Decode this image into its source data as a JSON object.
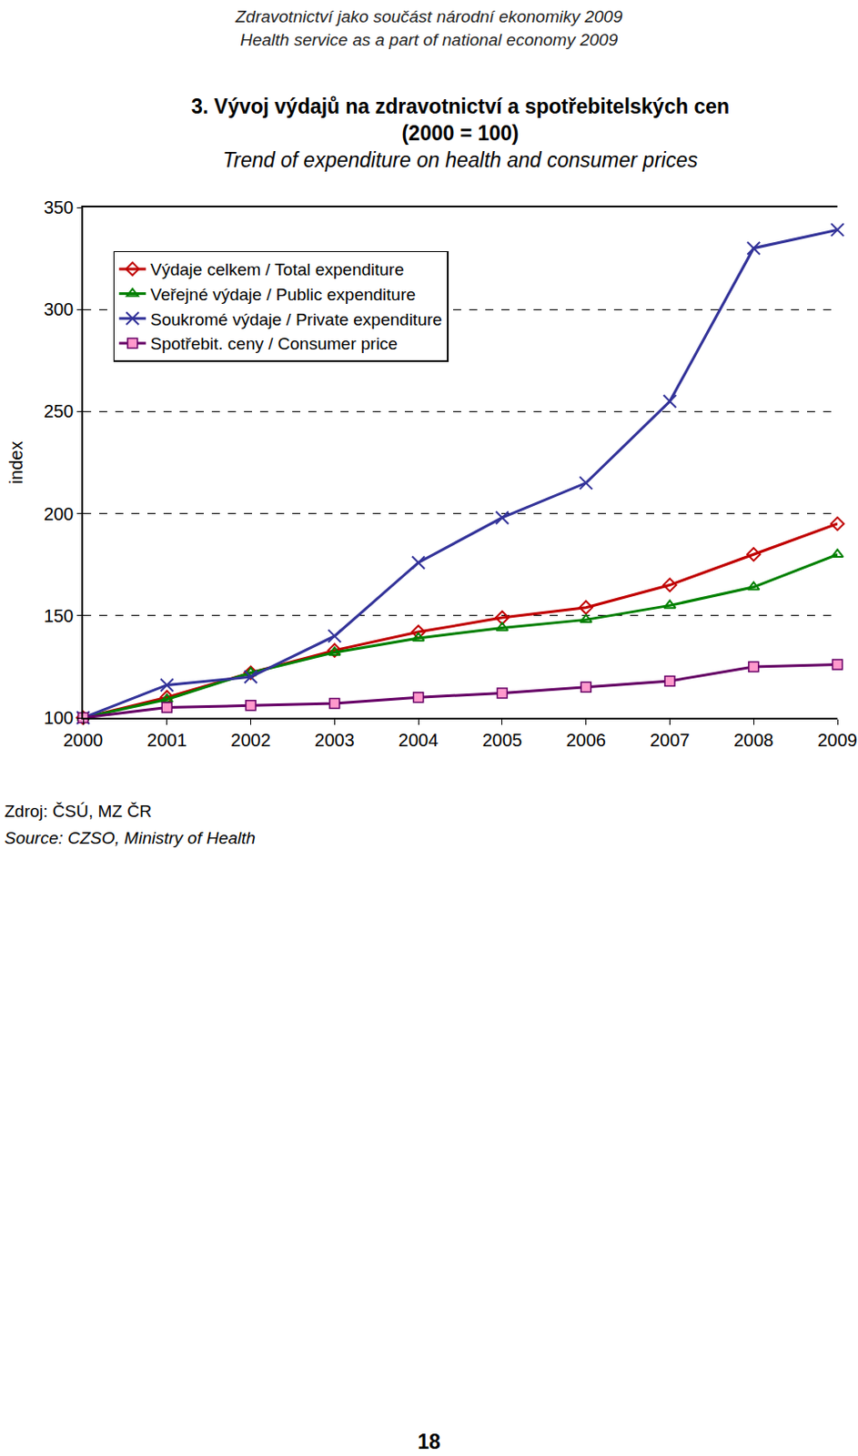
{
  "header": [
    "Zdravotnictví jako součást národní ekonomiky 2009",
    "Health service as a part of national economy 2009"
  ],
  "chart_data": {
    "type": "line",
    "title": "3. Vývoj výdajů na zdravotnictví a spotřebitelských cen\n(2000 = 100)",
    "subtitle": "Trend of expenditure on health and consumer prices",
    "y_label": "index",
    "categories": [
      "2000",
      "2001",
      "2002",
      "2003",
      "2004",
      "2005",
      "2006",
      "2007",
      "2008",
      "2009"
    ],
    "series": [
      {
        "name": "Výdaje celkem / Total expenditure",
        "color": "#c00000",
        "marker": "diamond-open",
        "line_style": "solid",
        "values": [
          100,
          110,
          122,
          133,
          142,
          149,
          154,
          165,
          180,
          195
        ]
      },
      {
        "name": "Veřejné výdaje / Public expenditure",
        "color": "#008000",
        "marker": "triangle-up-open",
        "line_style": "solid",
        "values": [
          100,
          109,
          122,
          132,
          139,
          144,
          148,
          155,
          164,
          180
        ]
      },
      {
        "name": "Soukromé výdaje / Private expenditure",
        "color": "#333399",
        "marker": "x-thin-open",
        "line_style": "solid",
        "values": [
          100,
          116,
          120,
          140,
          176,
          198,
          215,
          255,
          330,
          339
        ]
      },
      {
        "name": "Spotřebit. ceny / Consumer price",
        "color": "#660066",
        "marker": "square",
        "line_style": "solid",
        "values": [
          100,
          105,
          106,
          107,
          110,
          112,
          115,
          118,
          125,
          126
        ]
      }
    ],
    "ylim": [
      100,
      350
    ],
    "yticks": [
      100,
      150,
      200,
      250,
      300,
      350
    ],
    "grid": true,
    "legend": "top left"
  },
  "source": [
    "Zdroj: ČSÚ, MZ ČR",
    "Source: CZSO, Ministry of Health"
  ],
  "page_number": 18
}
